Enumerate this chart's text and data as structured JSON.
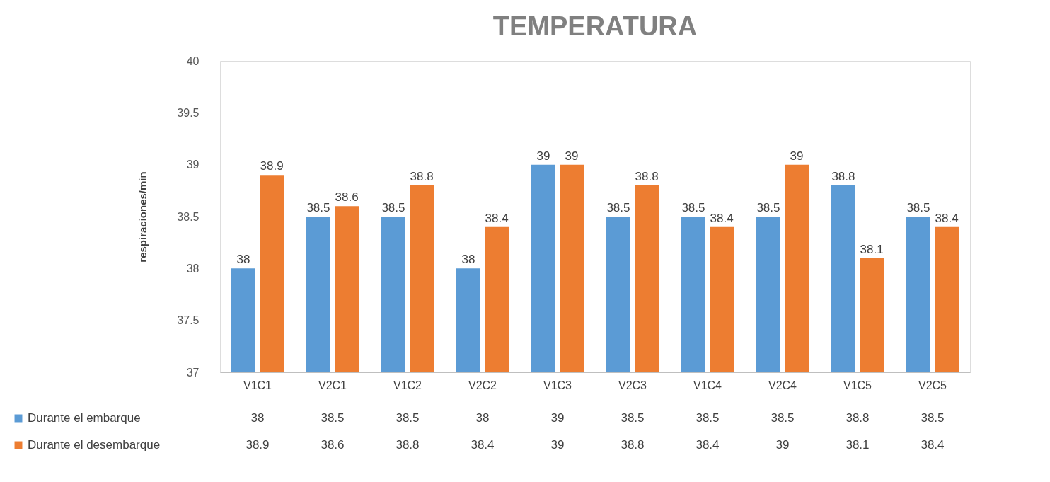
{
  "chart_data": {
    "type": "bar",
    "title": "TEMPERATURA",
    "ylabel": "respiraciones/min",
    "categories": [
      "V1C1",
      "V2C1",
      "V1C2",
      "V2C2",
      "V1C3",
      "V2C3",
      "V1C4",
      "V2C4",
      "V1C5",
      "V2C5"
    ],
    "series": [
      {
        "name": "Durante el embarque",
        "color": "#5b9bd5",
        "values": [
          38,
          38.5,
          38.5,
          38,
          39,
          38.5,
          38.5,
          38.5,
          38.8,
          38.5
        ]
      },
      {
        "name": "Durante el desembarque",
        "color": "#ed7d31",
        "values": [
          38.9,
          38.6,
          38.8,
          38.4,
          39,
          38.8,
          38.4,
          39,
          38.1,
          38.4
        ]
      }
    ],
    "annotations": [
      "38",
      "38.5",
      "38.5",
      "38",
      "39",
      "38.5",
      "38.5",
      "38.5",
      "38.8",
      "38.5",
      "38.9",
      "38.6",
      "38.8",
      "38.4",
      "39",
      "38.8",
      "38.4",
      "39",
      "38.1",
      "38.4"
    ],
    "ylim": [
      37,
      40
    ],
    "yticks": [
      37,
      37.5,
      38,
      38.5,
      39,
      39.5,
      40
    ],
    "grid": false,
    "legend": "bottom",
    "data_labels": true
  }
}
